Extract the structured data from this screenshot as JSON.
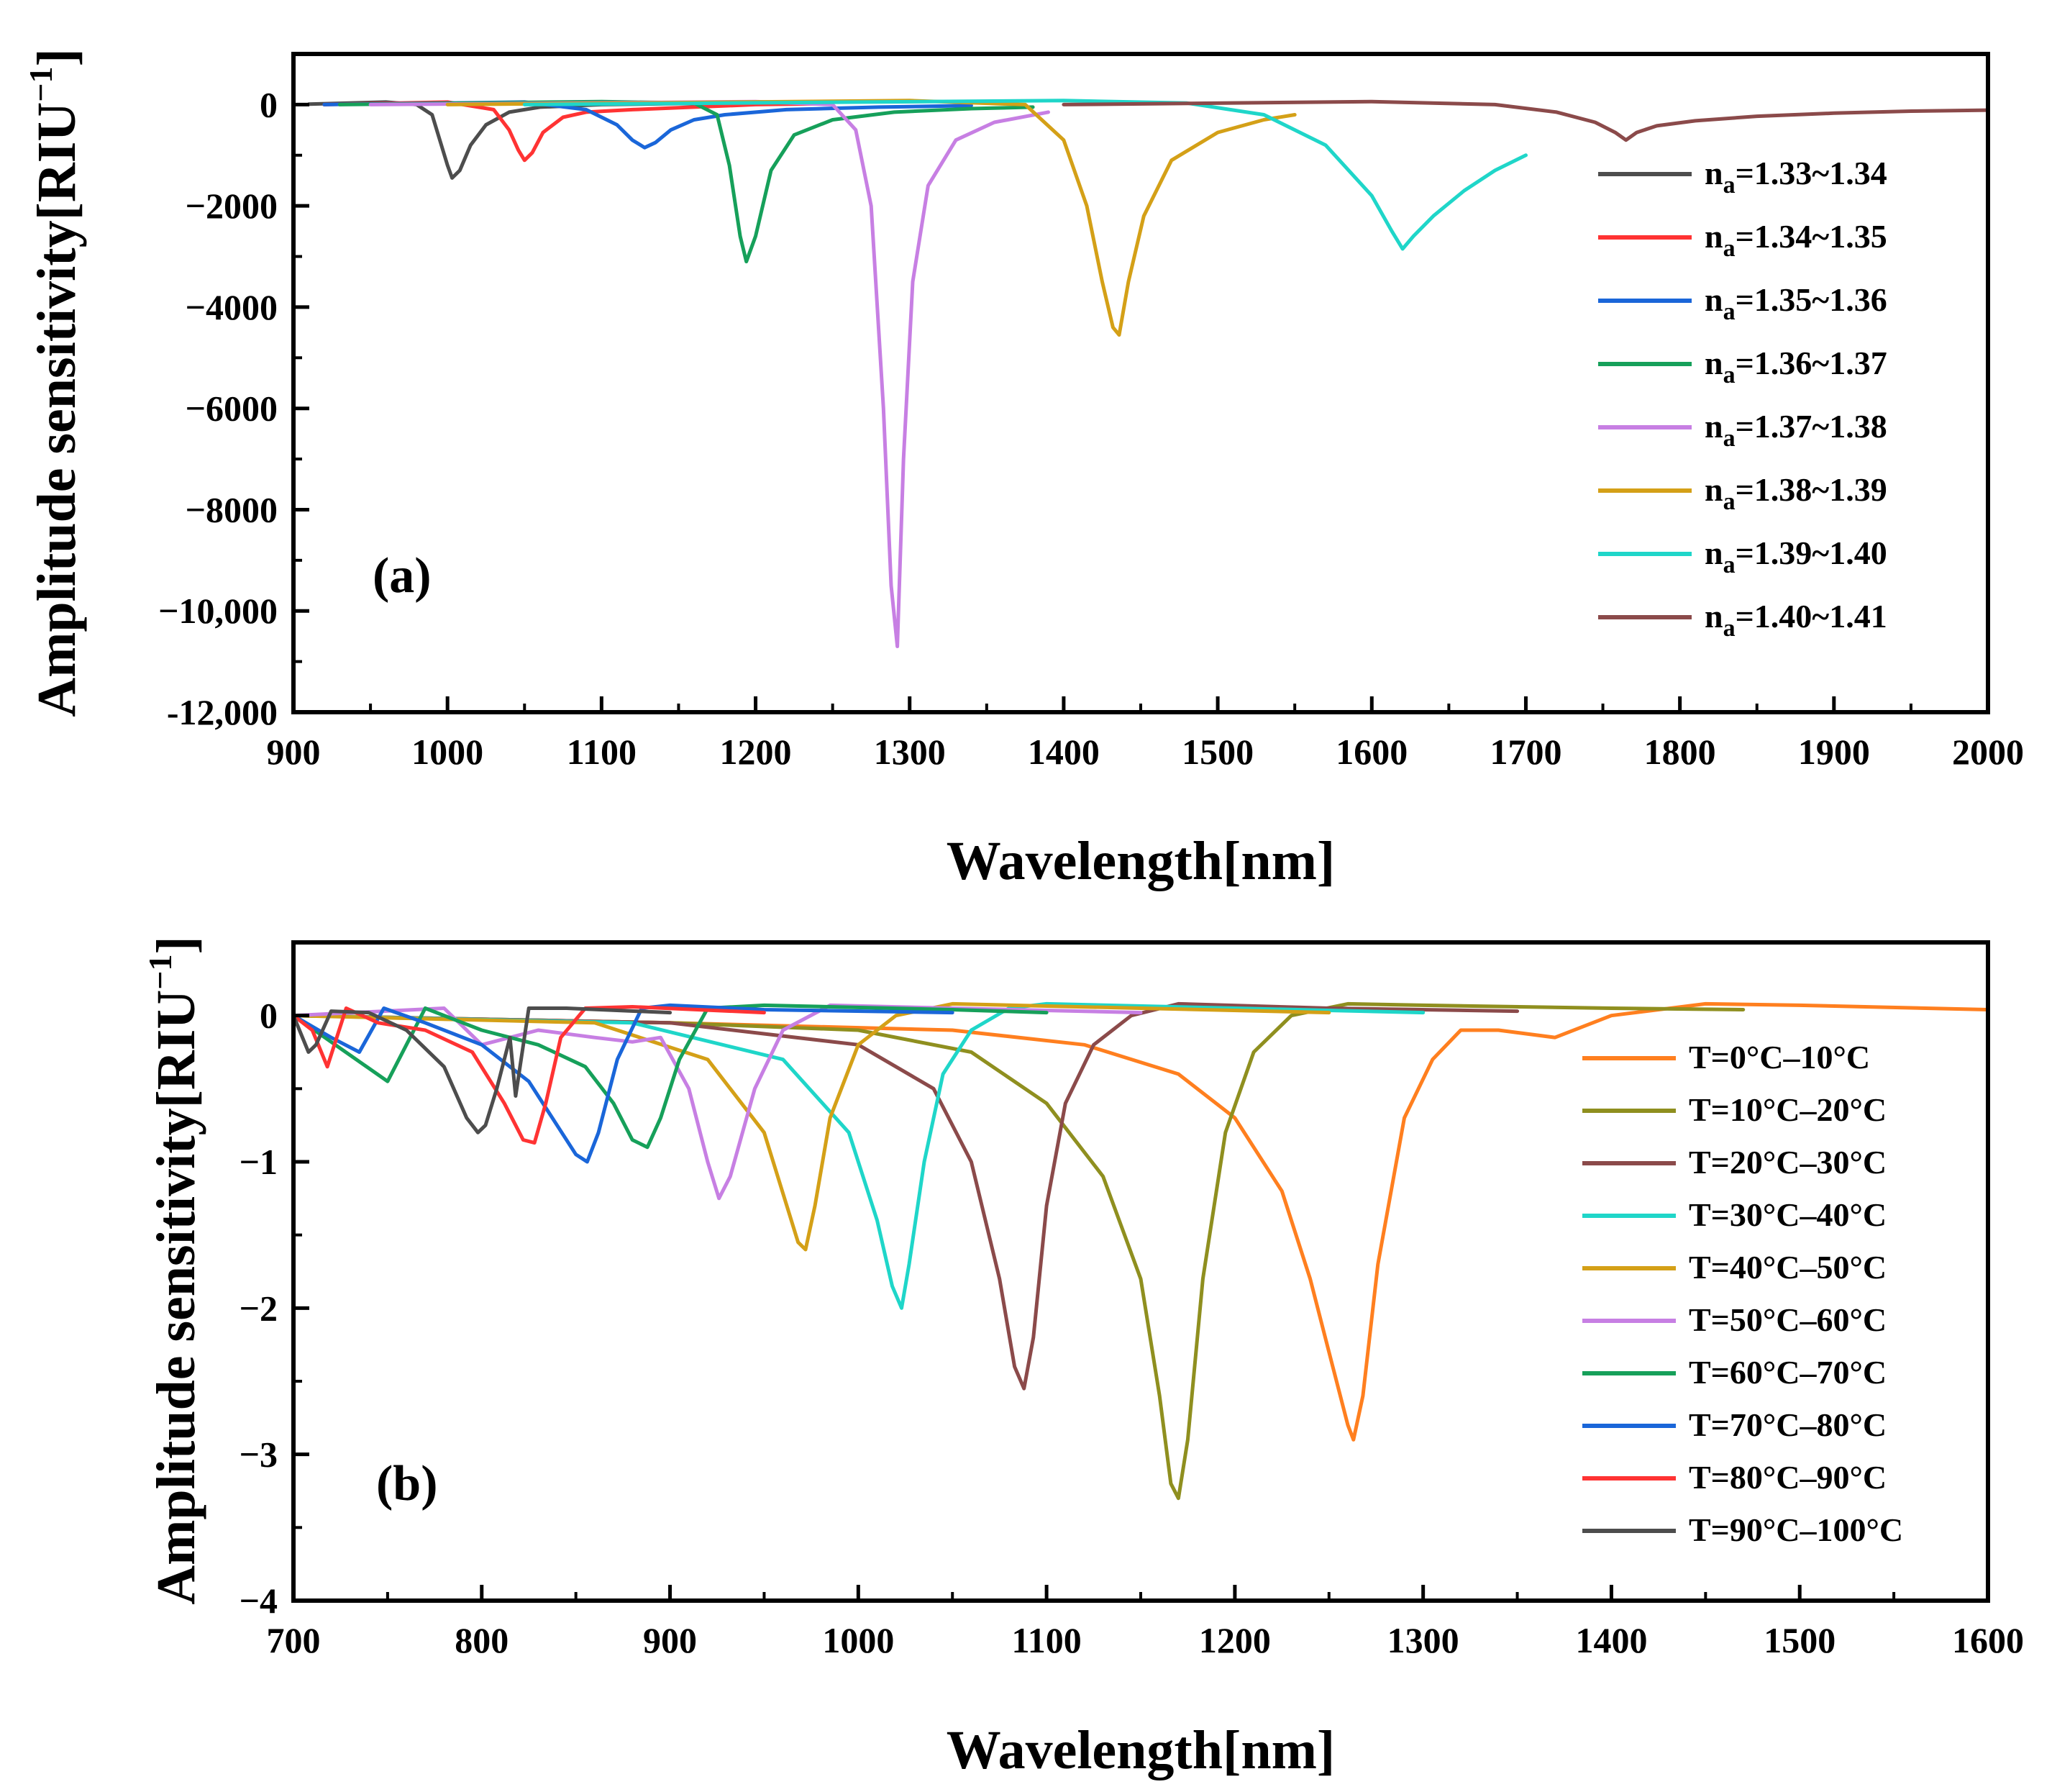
{
  "chart_data": [
    {
      "type": "line",
      "panel_label": "(a)",
      "xlabel": "Wavelength[nm]",
      "ylabel": "Amplitude sensitivity[RIU",
      "ylabel_sup": "−1",
      "ylabel_close": "]",
      "xlim": [
        900,
        2000
      ],
      "ylim": [
        -12000,
        1000
      ],
      "xticks": [
        900,
        1000,
        1100,
        1200,
        1300,
        1400,
        1500,
        1600,
        1700,
        1800,
        1900,
        2000
      ],
      "xtick_labels": [
        "900",
        "1000",
        "1100",
        "1200",
        "1300",
        "1400",
        "1500",
        "1600",
        "1700",
        "1800",
        "1900",
        "2000"
      ],
      "yticks": [
        0,
        -2000,
        -4000,
        -6000,
        -8000,
        -10000,
        -12000
      ],
      "ytick_labels": [
        "0",
        "−2000",
        "−4000",
        "−6000",
        "−8000",
        "−10,000",
        "-12,000"
      ],
      "legend_position": "right",
      "series": [
        {
          "name": "n",
          "sub": "a",
          "suffix": "=1.33~1.34",
          "color": "#4d4d4d",
          "x": [
            910,
            960,
            980,
            990,
            995,
            1000,
            1003,
            1008,
            1015,
            1025,
            1040,
            1060,
            1100,
            1150,
            1200
          ],
          "y": [
            10,
            50,
            0,
            -200,
            -700,
            -1200,
            -1450,
            -1300,
            -800,
            -400,
            -150,
            -50,
            0,
            20,
            10
          ]
        },
        {
          "name": "n",
          "sub": "a",
          "suffix": "=1.34~1.35",
          "color": "#ff3333",
          "x": [
            920,
            1000,
            1030,
            1040,
            1046,
            1050,
            1055,
            1062,
            1075,
            1090,
            1120,
            1160,
            1200,
            1250
          ],
          "y": [
            0,
            50,
            -100,
            -500,
            -900,
            -1100,
            -950,
            -550,
            -250,
            -150,
            -100,
            -50,
            0,
            20
          ]
        },
        {
          "name": "n",
          "sub": "a",
          "suffix": "=1.35~1.36",
          "color": "#1a66d9",
          "x": [
            920,
            1050,
            1090,
            1110,
            1120,
            1128,
            1135,
            1145,
            1160,
            1180,
            1220,
            1280,
            1340
          ],
          "y": [
            0,
            50,
            -100,
            -400,
            -700,
            -850,
            -750,
            -500,
            -300,
            -200,
            -100,
            -50,
            -20
          ]
        },
        {
          "name": "n",
          "sub": "a",
          "suffix": "=1.36~1.37",
          "color": "#16a05a",
          "x": [
            930,
            1100,
            1160,
            1175,
            1183,
            1190,
            1194,
            1200,
            1210,
            1225,
            1250,
            1290,
            1340,
            1380
          ],
          "y": [
            0,
            60,
            30,
            -200,
            -1200,
            -2600,
            -3100,
            -2600,
            -1300,
            -600,
            -300,
            -150,
            -80,
            -50
          ]
        },
        {
          "name": "n",
          "sub": "a",
          "suffix": "=1.37~1.38",
          "color": "#c77fe3",
          "x": [
            950,
            1200,
            1250,
            1265,
            1275,
            1283,
            1288,
            1292,
            1296,
            1302,
            1312,
            1330,
            1355,
            1390
          ],
          "y": [
            0,
            60,
            0,
            -500,
            -2000,
            -6000,
            -9500,
            -10700,
            -7000,
            -3500,
            -1600,
            -700,
            -350,
            -150
          ]
        },
        {
          "name": "n",
          "sub": "a",
          "suffix": "=1.38~1.39",
          "color": "#d4a017",
          "x": [
            1000,
            1300,
            1375,
            1400,
            1415,
            1425,
            1432,
            1436,
            1442,
            1452,
            1470,
            1500,
            1530,
            1550
          ],
          "y": [
            0,
            80,
            0,
            -700,
            -2000,
            -3500,
            -4400,
            -4550,
            -3500,
            -2200,
            -1100,
            -550,
            -300,
            -200
          ]
        },
        {
          "name": "n",
          "sub": "a",
          "suffix": "=1.39~1.40",
          "color": "#1fd6c9",
          "x": [
            1050,
            1400,
            1480,
            1530,
            1570,
            1600,
            1613,
            1620,
            1627,
            1640,
            1660,
            1680,
            1700
          ],
          "y": [
            0,
            80,
            30,
            -200,
            -800,
            -1800,
            -2500,
            -2850,
            -2600,
            -2200,
            -1700,
            -1300,
            -1000
          ]
        },
        {
          "name": "n",
          "sub": "a",
          "suffix": "=1.40~1.41",
          "color": "#8b4a4a",
          "x": [
            1400,
            1600,
            1680,
            1720,
            1745,
            1758,
            1765,
            1772,
            1785,
            1810,
            1850,
            1900,
            1950,
            2000
          ],
          "y": [
            0,
            60,
            0,
            -150,
            -350,
            -550,
            -700,
            -550,
            -420,
            -320,
            -230,
            -170,
            -130,
            -110
          ]
        }
      ]
    },
    {
      "type": "line",
      "panel_label": "(b)",
      "xlabel": "Wavelength[nm]",
      "ylabel": "Amplitude sensitivity[RIU",
      "ylabel_sup": "−1",
      "ylabel_close": "]",
      "xlim": [
        700,
        1600
      ],
      "ylim": [
        -4,
        0.5
      ],
      "xticks": [
        700,
        800,
        900,
        1000,
        1100,
        1200,
        1300,
        1400,
        1500,
        1600
      ],
      "xtick_labels": [
        "700",
        "800",
        "900",
        "1000",
        "1100",
        "1200",
        "1300",
        "1400",
        "1500",
        "1600"
      ],
      "yticks": [
        0,
        -1,
        -2,
        -3,
        -4
      ],
      "ytick_labels": [
        "0",
        "−1",
        "−2",
        "−3",
        "−4"
      ],
      "legend_position": "right",
      "series": [
        {
          "name": "T=0°C–10°C",
          "color": "#ff7f1f",
          "x": [
            700,
            900,
            1050,
            1120,
            1170,
            1200,
            1225,
            1240,
            1252,
            1260,
            1263,
            1268,
            1276,
            1290,
            1305,
            1320,
            1340,
            1370,
            1400,
            1450,
            1500,
            1600
          ],
          "y": [
            0,
            -0.05,
            -0.1,
            -0.2,
            -0.4,
            -0.7,
            -1.2,
            -1.8,
            -2.4,
            -2.8,
            -2.9,
            -2.6,
            -1.7,
            -0.7,
            -0.3,
            -0.1,
            -0.1,
            -0.15,
            0.0,
            0.08,
            0.07,
            0.04
          ]
        },
        {
          "name": "T=10°C–20°C",
          "color": "#8f8f1f",
          "x": [
            700,
            900,
            1000,
            1060,
            1100,
            1130,
            1150,
            1160,
            1166,
            1170,
            1175,
            1183,
            1195,
            1210,
            1230,
            1260,
            1300,
            1400,
            1470
          ],
          "y": [
            0,
            -0.05,
            -0.1,
            -0.25,
            -0.6,
            -1.1,
            -1.8,
            -2.6,
            -3.2,
            -3.3,
            -2.9,
            -1.8,
            -0.8,
            -0.25,
            0.0,
            0.08,
            0.07,
            0.05,
            0.04
          ]
        },
        {
          "name": "T=20°C–30°C",
          "color": "#8b4a4a",
          "x": [
            700,
            900,
            1000,
            1040,
            1060,
            1075,
            1083,
            1088,
            1093,
            1100,
            1110,
            1125,
            1145,
            1170,
            1250,
            1350
          ],
          "y": [
            0,
            -0.05,
            -0.2,
            -0.5,
            -1.0,
            -1.8,
            -2.4,
            -2.55,
            -2.2,
            -1.3,
            -0.6,
            -0.2,
            0.0,
            0.08,
            0.05,
            0.03
          ]
        },
        {
          "name": "T=30°C–40°C",
          "color": "#1fd6c9",
          "x": [
            700,
            880,
            960,
            995,
            1010,
            1018,
            1023,
            1027,
            1035,
            1045,
            1060,
            1080,
            1100,
            1200,
            1300
          ],
          "y": [
            0,
            -0.05,
            -0.3,
            -0.8,
            -1.4,
            -1.85,
            -2.0,
            -1.7,
            -1.0,
            -0.4,
            -0.1,
            0.05,
            0.08,
            0.05,
            0.02
          ]
        },
        {
          "name": "T=40°C–50°C",
          "color": "#d4a017",
          "x": [
            700,
            860,
            920,
            950,
            962,
            968,
            972,
            977,
            985,
            1000,
            1020,
            1050,
            1150,
            1250
          ],
          "y": [
            0,
            -0.05,
            -0.3,
            -0.8,
            -1.3,
            -1.55,
            -1.6,
            -1.3,
            -0.7,
            -0.2,
            0.0,
            0.08,
            0.05,
            0.02
          ]
        },
        {
          "name": "T=50°C–60°C",
          "color": "#c77fe3",
          "x": [
            700,
            780,
            800,
            830,
            860,
            880,
            895,
            910,
            920,
            926,
            932,
            945,
            960,
            985,
            1050,
            1150
          ],
          "y": [
            0,
            0.05,
            -0.2,
            -0.1,
            -0.15,
            -0.18,
            -0.15,
            -0.5,
            -1.0,
            -1.25,
            -1.1,
            -0.5,
            -0.1,
            0.07,
            0.05,
            0.02
          ]
        },
        {
          "name": "T=60°C–70°C",
          "color": "#16a05a",
          "x": [
            700,
            750,
            770,
            800,
            830,
            855,
            870,
            880,
            888,
            895,
            905,
            920,
            950,
            1050,
            1100
          ],
          "y": [
            0,
            -0.45,
            0.05,
            -0.1,
            -0.2,
            -0.35,
            -0.6,
            -0.85,
            -0.9,
            -0.7,
            -0.3,
            0.05,
            0.07,
            0.04,
            0.02
          ]
        },
        {
          "name": "T=70°C–80°C",
          "color": "#1a66d9",
          "x": [
            700,
            720,
            735,
            748,
            770,
            800,
            825,
            840,
            850,
            856,
            862,
            872,
            885,
            900,
            950,
            1050
          ],
          "y": [
            0,
            -0.15,
            -0.25,
            0.05,
            -0.05,
            -0.2,
            -0.45,
            -0.75,
            -0.95,
            -1.0,
            -0.8,
            -0.3,
            0.05,
            0.07,
            0.04,
            0.02
          ]
        },
        {
          "name": "T=80°C–90°C",
          "color": "#ff3333",
          "x": [
            700,
            710,
            718,
            728,
            745,
            770,
            795,
            812,
            822,
            828,
            834,
            842,
            855,
            880,
            950
          ],
          "y": [
            0,
            -0.1,
            -0.35,
            0.05,
            -0.05,
            -0.1,
            -0.25,
            -0.6,
            -0.85,
            -0.87,
            -0.6,
            -0.15,
            0.05,
            0.06,
            0.02
          ]
        },
        {
          "name": "T=90°C–100°C",
          "color": "#4d4d4d",
          "x": [
            700,
            708,
            712,
            720,
            740,
            760,
            780,
            792,
            798,
            802,
            808,
            815,
            818,
            825,
            845,
            900
          ],
          "y": [
            0,
            -0.25,
            -0.2,
            0.03,
            0.02,
            -0.1,
            -0.35,
            -0.7,
            -0.8,
            -0.75,
            -0.5,
            -0.15,
            -0.55,
            0.05,
            0.05,
            0.02
          ]
        }
      ]
    }
  ]
}
